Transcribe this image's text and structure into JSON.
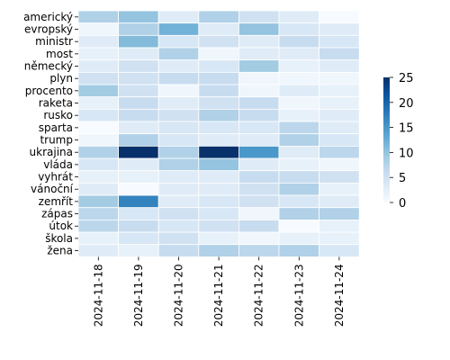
{
  "chart_data": {
    "type": "heatmap",
    "title": "",
    "xlabel": "",
    "ylabel": "",
    "x_categories": [
      "2024-11-18",
      "2024-11-19",
      "2024-11-20",
      "2024-11-21",
      "2024-11-22",
      "2024-11-23",
      "2024-11-24"
    ],
    "y_categories": [
      "americký",
      "evropský",
      "ministr",
      "most",
      "německý",
      "plyn",
      "procento",
      "raketa",
      "rusko",
      "sparta",
      "trump",
      "ukrajina",
      "vláda",
      "vyhrát",
      "vánoční",
      "zemřít",
      "zápas",
      "útok",
      "škola",
      "žena"
    ],
    "values": [
      [
        8,
        10,
        3,
        8,
        5,
        3,
        0
      ],
      [
        1,
        8,
        12,
        3,
        10,
        4,
        3
      ],
      [
        3,
        11,
        4,
        5,
        3,
        6,
        4
      ],
      [
        2,
        3,
        8,
        1,
        3,
        3,
        6
      ],
      [
        3,
        5,
        3,
        4,
        9,
        2,
        3
      ],
      [
        5,
        5,
        6,
        6,
        1,
        1,
        1
      ],
      [
        9,
        5,
        1,
        6,
        1,
        3,
        2
      ],
      [
        2,
        6,
        3,
        5,
        6,
        1,
        2
      ],
      [
        4,
        6,
        5,
        8,
        6,
        2,
        3
      ],
      [
        0,
        3,
        4,
        4,
        4,
        7,
        3
      ],
      [
        1,
        8,
        4,
        3,
        3,
        8,
        4
      ],
      [
        8,
        25,
        8,
        25,
        15,
        3,
        7
      ],
      [
        4,
        3,
        8,
        10,
        3,
        2,
        1
      ],
      [
        2,
        2,
        3,
        3,
        6,
        6,
        5
      ],
      [
        3,
        0,
        3,
        3,
        5,
        8,
        2
      ],
      [
        9,
        17,
        3,
        4,
        5,
        4,
        3
      ],
      [
        7,
        4,
        5,
        4,
        1,
        8,
        8
      ],
      [
        7,
        6,
        4,
        5,
        6,
        0,
        2
      ],
      [
        2,
        4,
        5,
        2,
        1,
        2,
        2
      ],
      [
        3,
        2,
        6,
        8,
        7,
        8,
        4
      ]
    ],
    "colorbar": {
      "min": 0,
      "max": 25,
      "ticks": [
        "0",
        "5",
        "10",
        "15",
        "20",
        "25"
      ],
      "colormap": "Blues",
      "colors": [
        "#f7fbff",
        "#deebf7",
        "#c6dbef",
        "#9ecae1",
        "#6baed6",
        "#4292c6",
        "#2171b5",
        "#08519c",
        "#08306b"
      ]
    },
    "grid": true,
    "cell_border_color": "#ffffff"
  }
}
